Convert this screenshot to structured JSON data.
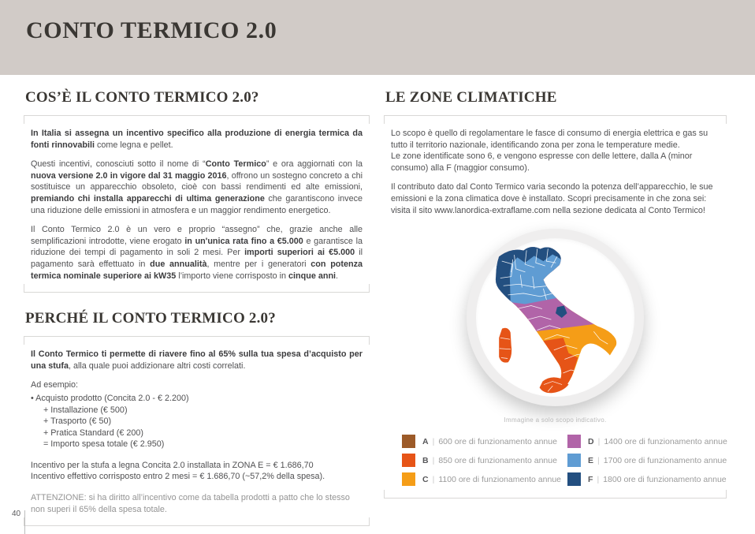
{
  "header": {
    "title": "CONTO TERMICO 2.0",
    "band_color": "#d1cbc7"
  },
  "left": {
    "section1": {
      "heading": "COS’È IL CONTO TERMICO 2.0?",
      "paragraphs": [
        "**In Italia si assegna un incentivo specifico alla produzione di energia termica da fonti rinnovabili** come legna e pellet.",
        "Questi incentivi, conosciuti sotto il nome di “**Conto Termico**” e ora aggiornati con la **nuova versione 2.0 in vigore dal 31 maggio 2016**, offrono un sostegno concreto a chi sostituisce un apparecchio obsoleto, cioè con bassi rendimenti ed alte emissioni, **premiando chi installa apparecchi di ultima generazione** che garantiscono invece una riduzione delle emissioni in atmosfera e un maggior rendimento energetico.",
        "Il Conto Termico 2.0 è un vero e proprio “assegno” che, grazie anche alle semplificazioni introdotte, viene erogato **in un'unica rata fino a €5.000** e garantisce la riduzione dei tempi di pagamento in soli 2 mesi. Per **importi superiori ai €5.000** il pagamento sarà effettuato in **due annualità**, mentre per i generatori **con potenza termica nominale superiore ai kW35** l’importo viene corrisposto in **cinque anni**."
      ]
    },
    "section2": {
      "heading": "PERCHÉ IL CONTO TERMICO 2.0?",
      "paragraphs": [
        "**Il Conto Termico ti permette di riavere fino al 65% sulla tua spesa d’acquisto per una stufa**, alla quale puoi addizionare altri costi correlati.",
        "Ad esempio:"
      ],
      "cost_lines": [
        {
          "text": "• Acquisto prodotto (Concita 2.0 - € 2.200)",
          "indent": "0"
        },
        {
          "text": "+ Installazione (€ 500)",
          "indent": "1"
        },
        {
          "text": "+ Trasporto (€ 50)",
          "indent": "1"
        },
        {
          "text": "+ Pratica Standard (€ 200)",
          "indent": "1"
        },
        {
          "text": "= Importo spesa totale (€ 2.950)",
          "indent": "1"
        }
      ],
      "incentive_lines": [
        "Incentivo per la stufa a legna Concita 2.0 installata in ZONA E = € 1.686,70",
        "Incentivo effettivo corrisposto entro 2 mesi = € 1.686,70 (~57,2% della spesa)."
      ],
      "warning": "ATTENZIONE: si ha diritto all’incentivo come da tabella prodotti a patto che lo stesso non superi il 65% della spesa totale."
    }
  },
  "right": {
    "heading": "LE ZONE CLIMATICHE",
    "paragraphs": [
      "Lo scopo è quello di regolamentare le fasce di consumo di energia elettrica e gas su tutto il territorio nazionale, identificando zona per zona le temperature medie.\nLe zone identificate sono 6, e vengono espresse con delle lettere, dalla A (minor consumo) alla F (maggior consumo).",
      "Il contributo dato dal Conto Termico varia secondo la potenza dell’apparecchio, le sue emissioni e la zona climatica dove è installato. Scopri precisamente in che zona sei: visita il sito www.lanordica-extraflame.com nella sezione dedicata al Conto Termico!"
    ],
    "map_caption": "Immagine a solo scopo indicativo.",
    "map_colors": {
      "A": "#9c5a28",
      "B": "#e65417",
      "C": "#f59d17",
      "D": "#b164a8",
      "E": "#5f9cd3",
      "F": "#234f80"
    },
    "legend": {
      "separator": "|",
      "items": [
        {
          "letter": "A",
          "text": "600 ore di funzionamento annue",
          "color": "#9c5a28"
        },
        {
          "letter": "B",
          "text": "850 ore di funzionamento annue",
          "color": "#e65417"
        },
        {
          "letter": "C",
          "text": "1100 ore di funzionamento annue",
          "color": "#f59d17"
        },
        {
          "letter": "D",
          "text": "1400 ore di funzionamento annue",
          "color": "#b164a8"
        },
        {
          "letter": "E",
          "text": "1700 ore di funzionamento annue",
          "color": "#5f9cd3"
        },
        {
          "letter": "F",
          "text": "1800 ore di funzionamento annue",
          "color": "#234f80"
        }
      ]
    }
  },
  "footer": {
    "page_number": "40"
  }
}
